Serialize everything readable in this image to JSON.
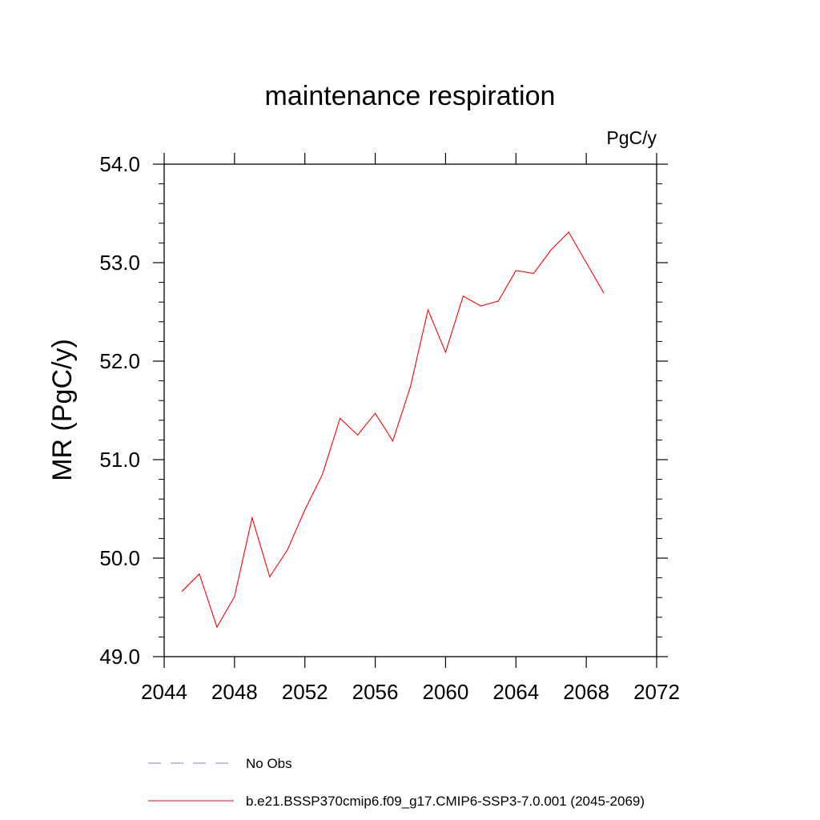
{
  "chart_data": {
    "type": "line",
    "title": "maintenance respiration",
    "units_label": "PgC/y",
    "ylabel": "MR  (PgC/y)",
    "xlabel": "",
    "xlim": [
      2044,
      2072
    ],
    "ylim": [
      49.0,
      54.0
    ],
    "x_ticks": [
      2044,
      2048,
      2052,
      2056,
      2060,
      2064,
      2068,
      2072
    ],
    "x_tick_labels": [
      "2044",
      "2048",
      "2052",
      "2056",
      "2060",
      "2064",
      "2068",
      "2072"
    ],
    "y_ticks": [
      49.0,
      50.0,
      51.0,
      52.0,
      53.0,
      54.0
    ],
    "y_tick_labels": [
      "49.0",
      "50.0",
      "51.0",
      "52.0",
      "53.0",
      "54.0"
    ],
    "grid": false,
    "legend_position": "bottom",
    "series": [
      {
        "name": "b.e21.BSSP370cmip6.f09_g17.CMIP6-SSP3-7.0.001 (2045-2069)",
        "color": "#ff0000",
        "style": "solid",
        "x": [
          2045,
          2046,
          2047,
          2048,
          2049,
          2050,
          2051,
          2052,
          2053,
          2054,
          2055,
          2056,
          2057,
          2058,
          2059,
          2060,
          2061,
          2062,
          2063,
          2064,
          2065,
          2066,
          2067,
          2068,
          2069
        ],
        "y": [
          49.66,
          49.84,
          49.3,
          49.61,
          50.41,
          49.81,
          50.08,
          50.49,
          50.85,
          51.42,
          51.25,
          51.47,
          51.19,
          51.74,
          52.52,
          52.09,
          52.66,
          52.56,
          52.61,
          52.92,
          52.89,
          53.13,
          53.31,
          53.0,
          52.69
        ]
      }
    ],
    "legend": [
      {
        "label": "No Obs",
        "color": "#8080d0",
        "style": "dashed"
      },
      {
        "label": "b.e21.BSSP370cmip6.f09_g17.CMIP6-SSP3-7.0.001 (2045-2069)",
        "color": "#ff0000",
        "style": "solid"
      }
    ]
  }
}
